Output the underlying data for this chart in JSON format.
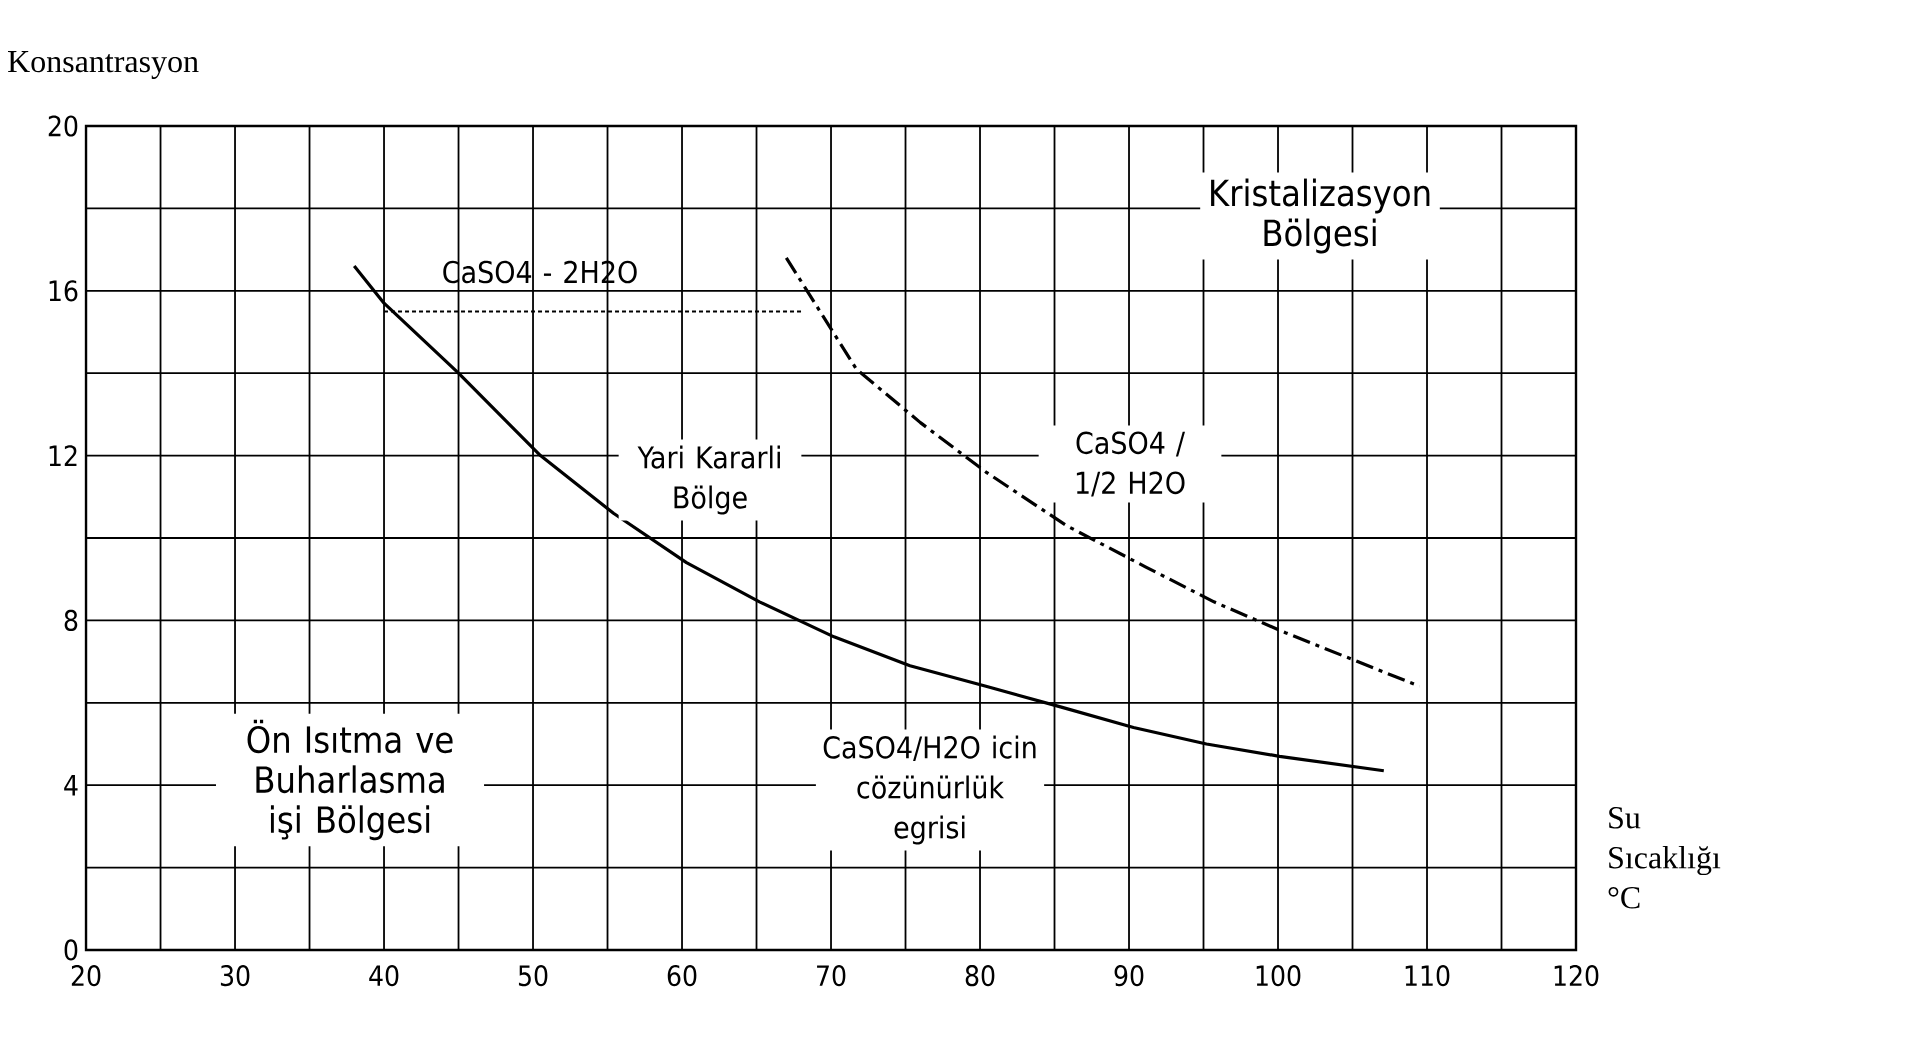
{
  "chart_data": {
    "type": "line",
    "xlabel": "Su Sıcaklığı °C",
    "ylabel": "Konsantrasyon",
    "xlim": [
      20,
      120
    ],
    "ylim": [
      0,
      20
    ],
    "xticks": [
      20,
      30,
      40,
      50,
      60,
      70,
      80,
      90,
      100,
      110,
      120
    ],
    "yticks": [
      0,
      4,
      8,
      12,
      16,
      20
    ],
    "grid": true,
    "color": "#000000",
    "series": [
      {
        "x": [
          38,
          40,
          45,
          50.5,
          55.4,
          60.3,
          65.2,
          70.2,
          75.3,
          80.4,
          85.4,
          90.3,
          95.2,
          100.1,
          107.1
        ],
        "values": [
          16.6,
          15.7,
          14.0,
          12.0,
          10.6,
          9.4,
          8.45,
          7.6,
          6.9,
          6.4,
          5.9,
          5.4,
          5.0,
          4.7,
          4.35
        ],
        "line_style": "solid"
      },
      {
        "x": [
          67,
          71.7,
          76.0,
          80.4,
          85.8,
          91.1,
          95.7,
          100.5,
          109.5
        ],
        "values": [
          16.8,
          14.1,
          12.8,
          11.6,
          10.3,
          9.3,
          8.45,
          7.7,
          6.4
        ],
        "line_style": "dashdot"
      },
      {
        "x": [
          40,
          68
        ],
        "values": [
          15.5,
          15.5
        ],
        "line_style": "dotted"
      }
    ],
    "annotations": [
      "Kristalizasyon Bölgesi",
      "CaSO4 - 2H2O",
      "Yari Kararli Bölge",
      "CaSO4 / 1/2 H2O",
      "Ön Isıtma ve Buharlasma işi Bölgesi",
      "CaSO4/H2O icin cözünürlük egrisi"
    ]
  }
}
